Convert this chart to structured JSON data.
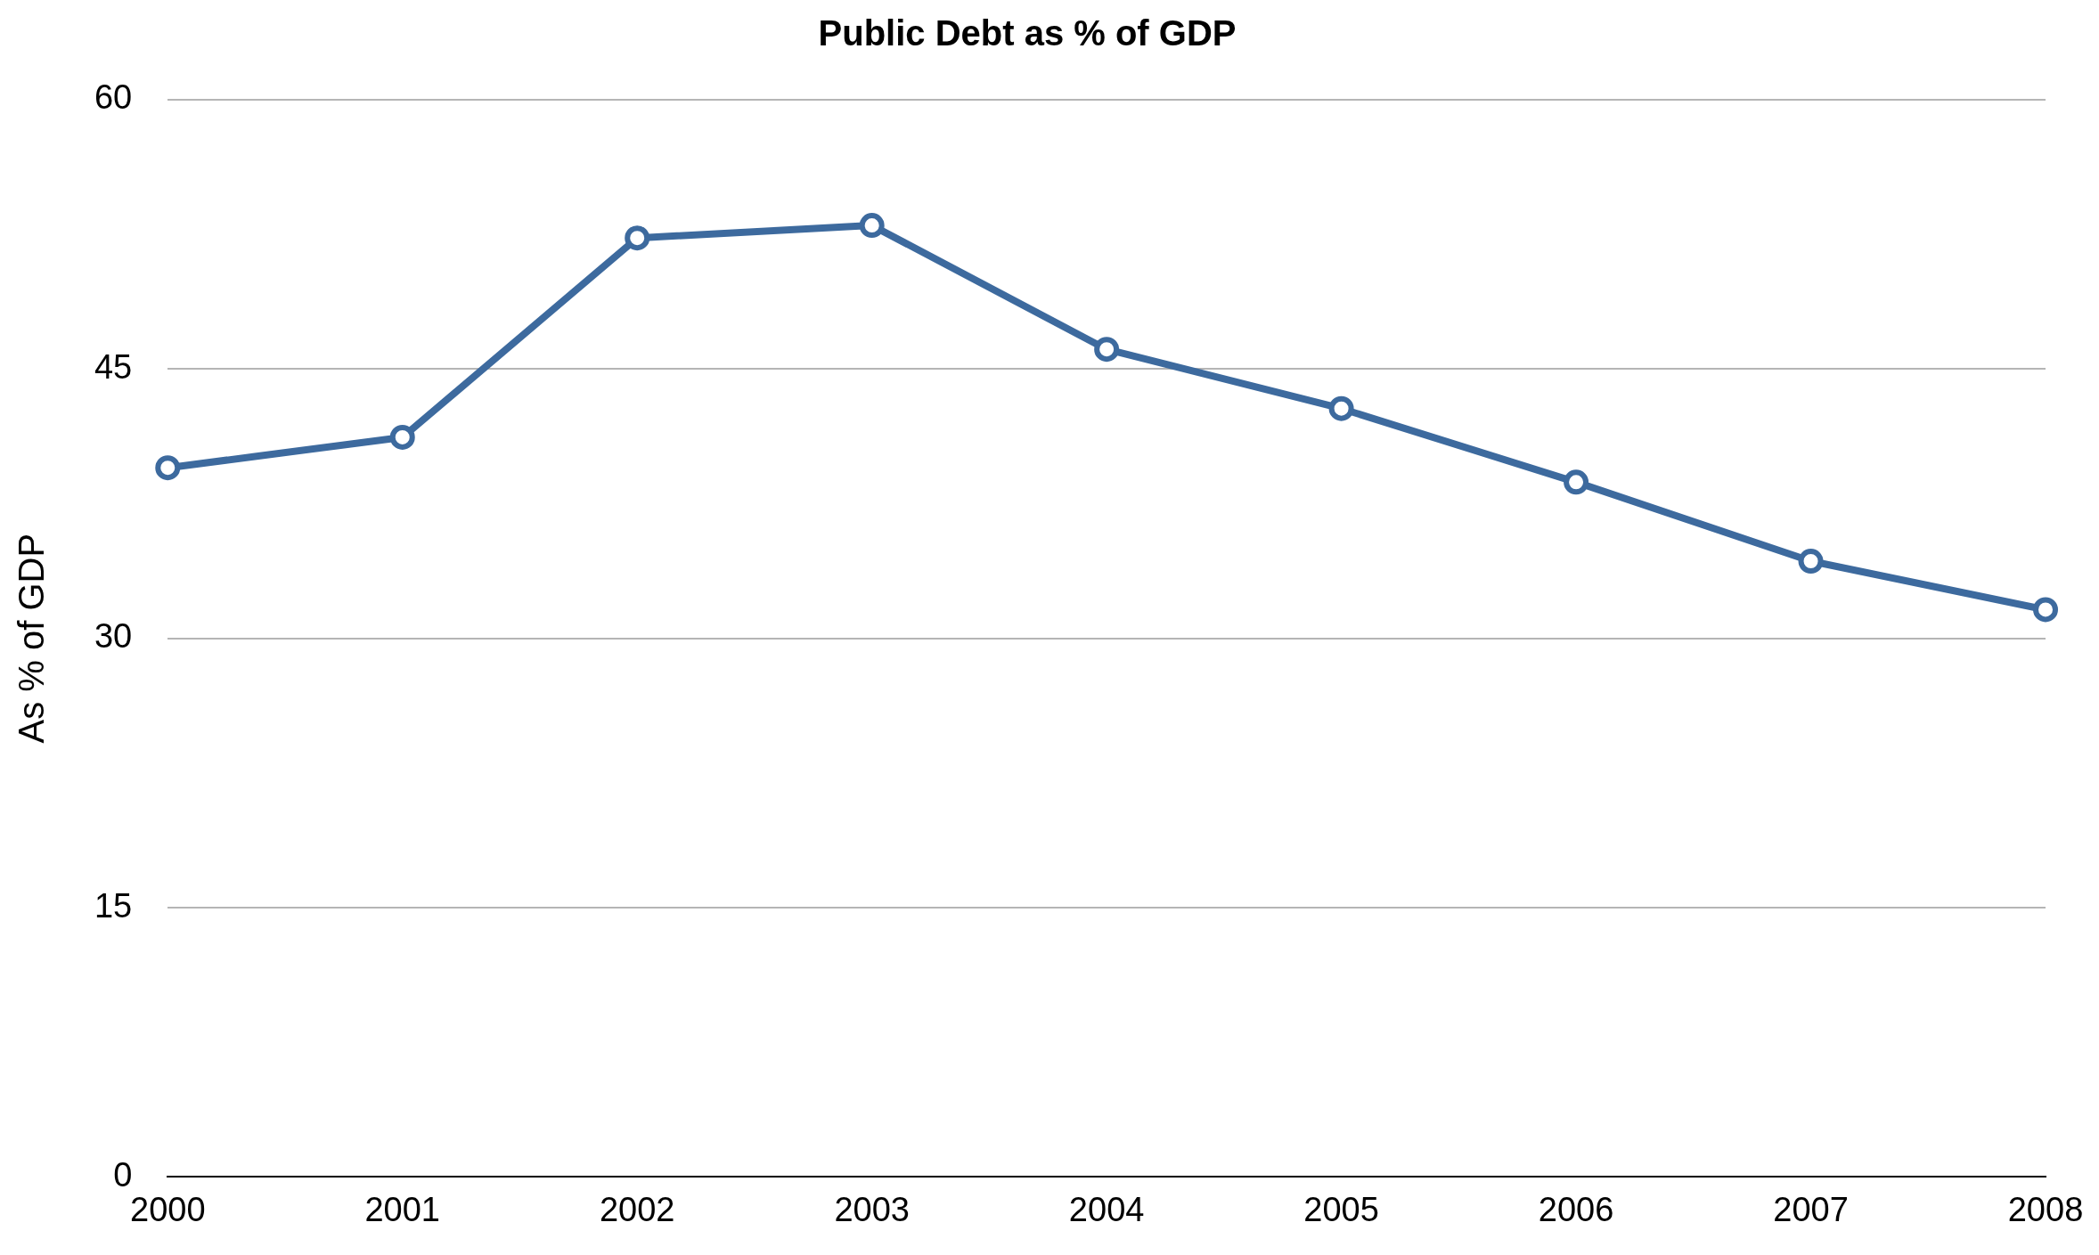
{
  "chart_data": {
    "type": "line",
    "title": "Public Debt as % of GDP",
    "ylabel": "As % of GDP",
    "categories": [
      "2000",
      "2001",
      "2002",
      "2003",
      "2004",
      "2005",
      "2006",
      "2007",
      "2008"
    ],
    "series": [
      {
        "color": "#3d6a9e",
        "values": [
          39.5,
          41.2,
          52.3,
          53.0,
          46.1,
          42.8,
          38.7,
          34.3,
          31.6
        ]
      }
    ],
    "ylim": [
      0,
      60
    ],
    "yticks": [
      0,
      15,
      30,
      45,
      60
    ],
    "grid": "y",
    "legend": false,
    "marker": "circle",
    "line_style": "solid"
  }
}
